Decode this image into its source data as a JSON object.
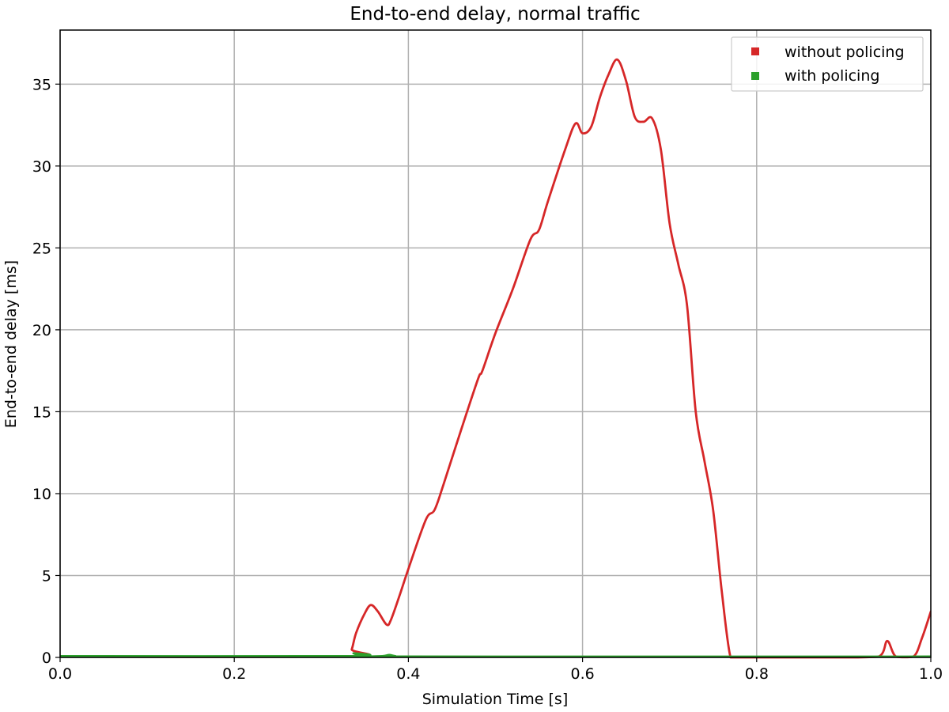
{
  "chart_data": {
    "type": "line",
    "title": "End-to-end delay, normal traffic",
    "xlabel": "Simulation Time [s]",
    "ylabel": "End-to-end delay [ms]",
    "xlim": [
      0.0,
      1.0
    ],
    "ylim": [
      0,
      38.3
    ],
    "xticks": [
      0.0,
      0.2,
      0.4,
      0.6,
      0.8,
      1.0
    ],
    "xtick_labels": [
      "0.0",
      "0.2",
      "0.4",
      "0.6",
      "0.8",
      "1.0"
    ],
    "yticks": [
      0,
      5,
      10,
      15,
      20,
      25,
      30,
      35
    ],
    "ytick_labels": [
      "0",
      "5",
      "10",
      "15",
      "20",
      "25",
      "30",
      "35"
    ],
    "grid": true,
    "legend_position": "top-right",
    "series": [
      {
        "name": "without policing",
        "color": "#d62728",
        "x": [
          0.0,
          0.33,
          0.335,
          0.34,
          0.35,
          0.357,
          0.365,
          0.375,
          0.38,
          0.39,
          0.4,
          0.42,
          0.43,
          0.44,
          0.46,
          0.48,
          0.485,
          0.5,
          0.52,
          0.54,
          0.55,
          0.56,
          0.58,
          0.592,
          0.6,
          0.61,
          0.62,
          0.63,
          0.64,
          0.65,
          0.66,
          0.67,
          0.68,
          0.69,
          0.7,
          0.71,
          0.72,
          0.73,
          0.74,
          0.75,
          0.76,
          0.77,
          0.78,
          0.8,
          0.9,
          0.94,
          0.95,
          0.96,
          0.98,
          0.99,
          1.0
        ],
        "y": [
          0.05,
          0.05,
          0.5,
          1.5,
          2.7,
          3.2,
          2.8,
          2.0,
          2.3,
          3.8,
          5.4,
          8.4,
          9.0,
          10.5,
          13.8,
          17.0,
          17.5,
          19.8,
          22.5,
          25.5,
          26.1,
          27.8,
          31.0,
          32.6,
          32.0,
          32.4,
          34.2,
          35.6,
          36.5,
          35.2,
          33.0,
          32.7,
          32.9,
          31.0,
          26.5,
          24.0,
          21.5,
          15.0,
          12.0,
          9.0,
          4.0,
          0.0,
          0.0,
          0.0,
          0.0,
          0.05,
          1.0,
          0.05,
          0.05,
          1.2,
          2.8
        ]
      },
      {
        "name": "with policing",
        "color": "#2ca02c",
        "x": [
          0.0,
          0.33,
          0.337,
          0.345,
          0.37,
          0.378,
          0.385,
          0.4,
          1.0
        ],
        "y": [
          0.08,
          0.08,
          0.25,
          0.08,
          0.08,
          0.15,
          0.08,
          0.05,
          0.05
        ]
      }
    ]
  }
}
